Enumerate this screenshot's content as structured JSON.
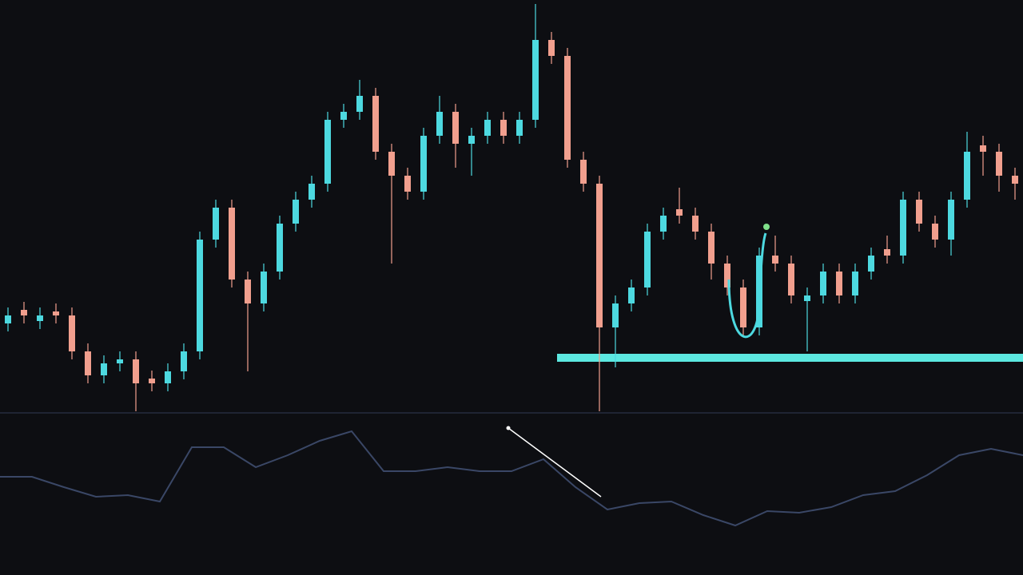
{
  "chart_data": [
    {
      "type": "candlestick",
      "up_color": "#4dd9e0",
      "down_color": "#f19f8e",
      "ylim": [
        0,
        520
      ],
      "open": [
        115,
        132,
        118,
        130,
        125,
        80,
        50,
        65,
        70,
        46,
        40,
        55,
        80,
        220,
        260,
        170,
        140,
        180,
        240,
        270,
        290,
        370,
        380,
        400,
        330,
        300,
        280,
        350,
        380,
        340,
        350,
        370,
        350,
        370,
        470,
        450,
        320,
        290,
        110,
        140,
        160,
        230,
        258,
        250,
        230,
        190,
        160,
        110,
        200,
        190,
        143,
        150,
        180,
        150,
        180,
        208,
        200,
        270,
        240,
        220,
        270,
        338,
        330,
        300
      ],
      "high": [
        135,
        142,
        135,
        140,
        135,
        90,
        75,
        80,
        80,
        56,
        65,
        90,
        230,
        270,
        270,
        180,
        190,
        250,
        280,
        300,
        380,
        390,
        420,
        410,
        340,
        310,
        360,
        400,
        390,
        360,
        380,
        380,
        380,
        515,
        480,
        460,
        330,
        300,
        150,
        170,
        240,
        260,
        285,
        260,
        240,
        200,
        170,
        210,
        225,
        200,
        160,
        190,
        190,
        190,
        210,
        225,
        280,
        280,
        250,
        280,
        355,
        350,
        340,
        310
      ],
      "low": [
        105,
        115,
        108,
        115,
        70,
        40,
        40,
        55,
        5,
        30,
        30,
        45,
        70,
        210,
        160,
        55,
        130,
        170,
        230,
        260,
        280,
        360,
        370,
        320,
        190,
        270,
        270,
        340,
        310,
        300,
        340,
        340,
        340,
        360,
        440,
        310,
        280,
        5,
        60,
        130,
        150,
        220,
        240,
        220,
        170,
        150,
        100,
        100,
        180,
        140,
        80,
        140,
        140,
        140,
        170,
        190,
        190,
        230,
        210,
        200,
        260,
        300,
        280,
        270
      ],
      "close": [
        125,
        125,
        125,
        125,
        80,
        50,
        65,
        70,
        40,
        40,
        55,
        80,
        220,
        260,
        170,
        140,
        180,
        240,
        270,
        290,
        370,
        380,
        400,
        330,
        300,
        280,
        350,
        380,
        340,
        350,
        370,
        350,
        370,
        470,
        450,
        320,
        290,
        110,
        140,
        160,
        230,
        250,
        250,
        230,
        190,
        160,
        110,
        200,
        190,
        150,
        150,
        180,
        150,
        180,
        200,
        200,
        270,
        240,
        220,
        270,
        330,
        330,
        300,
        290
      ],
      "support": {
        "value": 72,
        "color": "#5ce8e0"
      }
    },
    {
      "type": "line",
      "color": "#3a4766",
      "ylim": [
        0,
        200
      ],
      "values": [
        123,
        123,
        110,
        98,
        100,
        92,
        160,
        160,
        135,
        150,
        168,
        180,
        130,
        130,
        135,
        130,
        130,
        145,
        110,
        82,
        90,
        92,
        75,
        62,
        80,
        78,
        85,
        100,
        105,
        125,
        150,
        158,
        150
      ]
    }
  ]
}
